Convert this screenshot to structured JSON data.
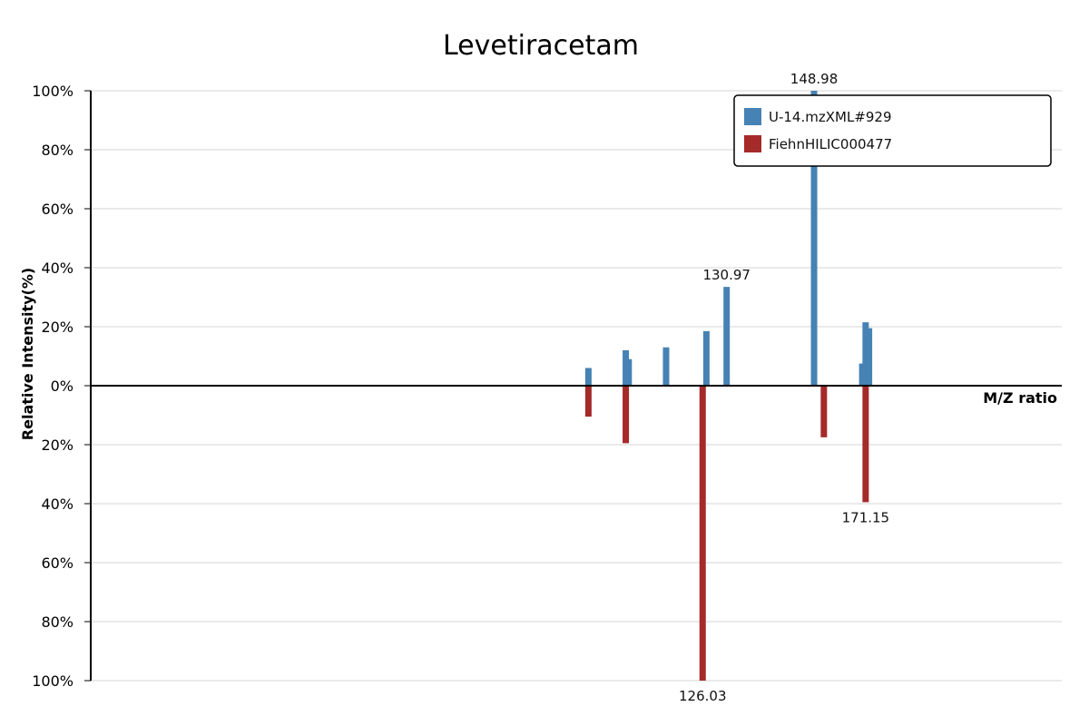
{
  "chart_data": {
    "type": "bar",
    "title": "Levetiracetam",
    "xlabel": "M/Z ratio",
    "ylabel": "Relative Intensity(%)",
    "ylim": [
      -100,
      100
    ],
    "ytick_values": [
      100,
      80,
      60,
      40,
      20,
      0,
      -20,
      -40,
      -60,
      -80,
      -100
    ],
    "ytick_labels": [
      "100%",
      "80%",
      "60%",
      "40%",
      "20%",
      "0%",
      "20%",
      "40%",
      "60%",
      "80%",
      "100%"
    ],
    "xlim": [
      0,
      200
    ],
    "grid": true,
    "legend_position": "top-right",
    "series": [
      {
        "name": "U-14.mzXML#929",
        "color": "#4682b4",
        "direction": "up",
        "points": [
          {
            "mz": 102.5,
            "intensity": 6
          },
          {
            "mz": 110.2,
            "intensity": 12
          },
          {
            "mz": 110.8,
            "intensity": 9
          },
          {
            "mz": 118.5,
            "intensity": 13
          },
          {
            "mz": 126.8,
            "intensity": 18.5
          },
          {
            "mz": 130.97,
            "intensity": 33.5
          },
          {
            "mz": 148.98,
            "intensity": 100
          },
          {
            "mz": 158.9,
            "intensity": 7.5
          },
          {
            "mz": 159.6,
            "intensity": 21.5
          },
          {
            "mz": 160.3,
            "intensity": 19.5
          }
        ],
        "labels": [
          {
            "mz": 130.97,
            "text": "130.97"
          },
          {
            "mz": 148.98,
            "text": "148.98"
          }
        ]
      },
      {
        "name": "FiehnHILIC000477",
        "color": "#a52a2a",
        "direction": "down",
        "points": [
          {
            "mz": 102.5,
            "intensity": 10.5
          },
          {
            "mz": 110.2,
            "intensity": 19.5
          },
          {
            "mz": 126.03,
            "intensity": 100
          },
          {
            "mz": 151.0,
            "intensity": 17.5
          },
          {
            "mz": 159.6,
            "intensity": 39.5
          }
        ],
        "labels": [
          {
            "mz": 126.03,
            "text": "126.03"
          },
          {
            "mz": 171.15,
            "text": "171.15",
            "anchor_mz": 159.6
          }
        ]
      }
    ]
  }
}
